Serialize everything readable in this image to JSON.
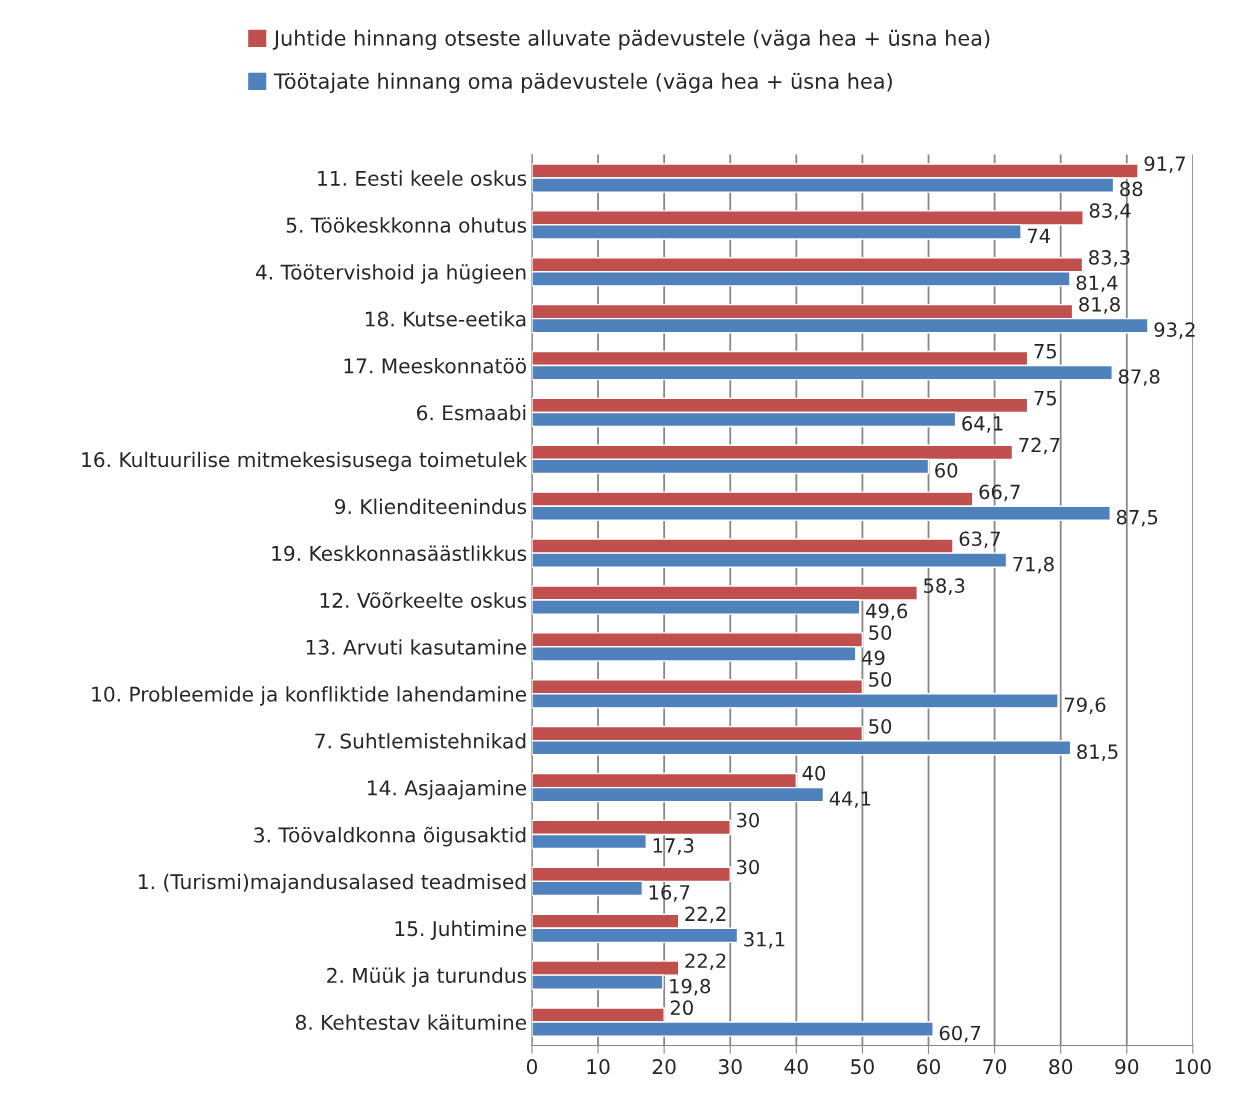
{
  "chart_data": {
    "type": "bar",
    "orientation": "horizontal",
    "categories": [
      "11. Eesti keele oskus",
      "5. Töökeskkonna ohutus",
      "4. Töötervishoid ja hügieen",
      "18. Kutse-eetika",
      "17. Meeskonnatöö",
      "6. Esmaabi",
      "16. Kultuurilise mitmekesisusega toimetulek",
      "9. Klienditeenindus",
      "19. Keskkonnasäästlikkus",
      "12. Võõrkeelte oskus",
      "13. Arvuti kasutamine",
      "10. Probleemide ja konfliktide lahendamine",
      "7. Suhtlemistehnikad",
      "14. Asjaajamine",
      "3. Töövaldkonna õigusaktid",
      "1. (Turismi)majandusalased teadmised",
      "15. Juhtimine",
      "2. Müük ja turundus",
      "8. Kehtestav käitumine"
    ],
    "series": [
      {
        "name": "Juhtide hinnang otseste alluvate pädevustele (väga hea + üsna hea)",
        "color": "#c0504d",
        "values": [
          91.7,
          83.4,
          83.3,
          81.8,
          75,
          75,
          72.7,
          66.7,
          63.7,
          58.3,
          50,
          50,
          50,
          40,
          30,
          30,
          22.2,
          22.2,
          20
        ],
        "value_labels": [
          "91,7",
          "83,4",
          "83,3",
          "81,8",
          "75",
          "75",
          "72,7",
          "66,7",
          "63,7",
          "58,3",
          "50",
          "50",
          "50",
          "40",
          "30",
          "30",
          "22,2",
          "22,2",
          "20"
        ]
      },
      {
        "name": "Töötajate hinnang oma pädevustele (väga hea + üsna hea)",
        "color": "#4f81bd",
        "values": [
          88,
          74,
          81.4,
          93.2,
          87.8,
          64.1,
          60,
          87.5,
          71.8,
          49.6,
          49,
          79.6,
          81.5,
          44.1,
          17.3,
          16.7,
          31.1,
          19.8,
          60.7
        ],
        "value_labels": [
          "88",
          "74",
          "81,4",
          "93,2",
          "87,8",
          "64,1",
          "60",
          "87,5",
          "71,8",
          "49,6",
          "49",
          "79,6",
          "81,5",
          "44,1",
          "17,3",
          "16,7",
          "31,1",
          "19,8",
          "60,7"
        ]
      }
    ],
    "xlim": [
      0,
      100
    ],
    "xticks": [
      0,
      10,
      20,
      30,
      40,
      50,
      60,
      70,
      80,
      90,
      100
    ],
    "grid": "x",
    "legend": "top"
  }
}
